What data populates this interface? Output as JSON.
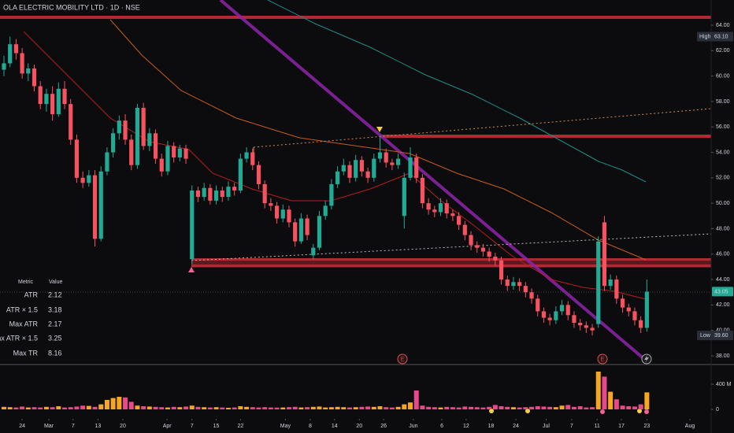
{
  "chart_data": {
    "type": "candlestick",
    "title": "OLA ELECTRIC MOBILITY LTD · 1D · NSE",
    "up_color": "#22ab94",
    "down_color": "#f7525f",
    "ohlc": [
      [
        60.5,
        61.6,
        60.0,
        61.0
      ],
      [
        61.0,
        63.1,
        60.7,
        62.5
      ],
      [
        62.5,
        62.9,
        61.3,
        61.8
      ],
      [
        61.8,
        62.2,
        59.8,
        60.2
      ],
      [
        60.2,
        61.0,
        59.6,
        60.6
      ],
      [
        60.6,
        60.9,
        58.8,
        59.2
      ],
      [
        59.2,
        59.6,
        57.4,
        57.8
      ],
      [
        57.8,
        59.0,
        57.2,
        58.6
      ],
      [
        58.6,
        59.2,
        56.5,
        57.0
      ],
      [
        57.0,
        59.5,
        56.8,
        59.0
      ],
      [
        59.0,
        59.6,
        57.4,
        57.8
      ],
      [
        57.8,
        58.2,
        54.6,
        55.0
      ],
      [
        55.0,
        55.4,
        51.6,
        52.0
      ],
      [
        52.0,
        52.5,
        51.2,
        51.6
      ],
      [
        51.6,
        52.6,
        51.3,
        52.2
      ],
      [
        52.2,
        52.6,
        46.6,
        47.2
      ],
      [
        47.2,
        52.9,
        47.0,
        52.5
      ],
      [
        52.5,
        54.4,
        52.2,
        54.0
      ],
      [
        54.0,
        55.9,
        53.6,
        55.5
      ],
      [
        55.5,
        56.9,
        55.0,
        56.5
      ],
      [
        56.5,
        57.0,
        54.6,
        55.0
      ],
      [
        55.0,
        55.4,
        52.6,
        53.0
      ],
      [
        53.0,
        57.8,
        52.7,
        57.5
      ],
      [
        57.5,
        57.9,
        54.2,
        54.5
      ],
      [
        54.5,
        55.9,
        54.1,
        55.5
      ],
      [
        55.5,
        55.8,
        53.1,
        53.5
      ],
      [
        53.5,
        53.9,
        52.1,
        52.5
      ],
      [
        52.5,
        54.9,
        52.2,
        54.5
      ],
      [
        54.5,
        54.8,
        53.2,
        53.6
      ],
      [
        53.6,
        54.6,
        53.3,
        54.3
      ],
      [
        54.3,
        54.6,
        53.1,
        53.5
      ],
      [
        45.6,
        51.4,
        45.2,
        51.0
      ],
      [
        51.0,
        51.3,
        50.1,
        50.5
      ],
      [
        50.5,
        51.6,
        50.2,
        51.2
      ],
      [
        51.2,
        51.5,
        49.9,
        50.2
      ],
      [
        50.2,
        51.4,
        49.9,
        51.0
      ],
      [
        51.0,
        51.3,
        50.1,
        50.5
      ],
      [
        50.5,
        51.7,
        50.2,
        51.3
      ],
      [
        51.3,
        51.6,
        50.6,
        51.0
      ],
      [
        51.0,
        53.9,
        50.8,
        53.5
      ],
      [
        53.5,
        54.4,
        53.2,
        54.0
      ],
      [
        54.0,
        54.3,
        52.6,
        53.0
      ],
      [
        53.0,
        53.3,
        51.1,
        51.5
      ],
      [
        51.5,
        51.8,
        49.6,
        50.0
      ],
      [
        50.0,
        50.4,
        49.4,
        49.8
      ],
      [
        49.8,
        50.1,
        48.4,
        48.8
      ],
      [
        48.8,
        49.9,
        48.5,
        49.5
      ],
      [
        49.5,
        49.8,
        48.1,
        48.5
      ],
      [
        48.5,
        48.8,
        46.6,
        47.0
      ],
      [
        47.0,
        49.2,
        46.8,
        48.8
      ],
      [
        48.8,
        49.1,
        47.1,
        47.5
      ],
      [
        45.9,
        46.8,
        45.6,
        46.5
      ],
      [
        46.5,
        49.4,
        46.3,
        49.0
      ],
      [
        49.0,
        50.2,
        48.7,
        49.8
      ],
      [
        49.8,
        51.9,
        49.5,
        51.5
      ],
      [
        51.5,
        52.9,
        51.2,
        52.5
      ],
      [
        52.5,
        53.5,
        52.2,
        53.0
      ],
      [
        53.0,
        53.3,
        51.6,
        52.0
      ],
      [
        52.0,
        53.8,
        51.7,
        53.4
      ],
      [
        53.4,
        53.7,
        52.1,
        52.5
      ],
      [
        52.5,
        52.8,
        51.6,
        52.0
      ],
      [
        52.0,
        53.9,
        51.7,
        53.5
      ],
      [
        53.5,
        55.3,
        53.2,
        54.0
      ],
      [
        54.0,
        54.3,
        52.8,
        53.2
      ],
      [
        53.2,
        53.5,
        52.6,
        53.0
      ],
      [
        53.0,
        53.9,
        52.7,
        53.5
      ],
      [
        49.0,
        52.4,
        48.0,
        52.0
      ],
      [
        52.0,
        54.4,
        51.8,
        53.6
      ],
      [
        53.6,
        53.9,
        51.6,
        52.0
      ],
      [
        52.0,
        52.3,
        49.6,
        50.0
      ],
      [
        50.0,
        50.4,
        49.1,
        49.5
      ],
      [
        49.5,
        49.8,
        48.9,
        49.3
      ],
      [
        49.3,
        50.4,
        49.0,
        50.0
      ],
      [
        50.0,
        50.3,
        48.8,
        49.2
      ],
      [
        49.2,
        49.5,
        48.6,
        49.0
      ],
      [
        49.0,
        49.3,
        47.9,
        48.3
      ],
      [
        48.3,
        48.6,
        47.1,
        47.5
      ],
      [
        47.5,
        47.8,
        46.3,
        46.7
      ],
      [
        46.7,
        47.0,
        46.1,
        46.5
      ],
      [
        46.5,
        46.8,
        45.8,
        46.2
      ],
      [
        46.2,
        46.5,
        45.4,
        45.8
      ],
      [
        45.8,
        46.1,
        45.1,
        45.5
      ],
      [
        45.5,
        45.8,
        43.6,
        44.0
      ],
      [
        44.0,
        44.3,
        43.1,
        43.5
      ],
      [
        43.5,
        44.2,
        43.2,
        43.8
      ],
      [
        43.8,
        44.1,
        43.1,
        43.5
      ],
      [
        43.5,
        43.8,
        42.6,
        43.0
      ],
      [
        43.0,
        43.3,
        42.1,
        42.5
      ],
      [
        42.5,
        42.8,
        41.1,
        41.5
      ],
      [
        41.5,
        41.8,
        40.6,
        41.0
      ],
      [
        41.0,
        41.3,
        40.4,
        40.8
      ],
      [
        40.8,
        41.9,
        40.5,
        41.5
      ],
      [
        41.5,
        42.4,
        41.2,
        42.0
      ],
      [
        42.0,
        42.3,
        40.8,
        41.2
      ],
      [
        41.2,
        41.5,
        40.2,
        40.6
      ],
      [
        40.6,
        40.9,
        40.0,
        40.4
      ],
      [
        40.4,
        40.7,
        39.8,
        40.2
      ],
      [
        40.2,
        40.5,
        39.6,
        40.0
      ],
      [
        40.5,
        47.4,
        40.2,
        47.0
      ],
      [
        48.5,
        49.0,
        43.1,
        43.5
      ],
      [
        43.5,
        44.4,
        43.2,
        44.0
      ],
      [
        44.0,
        44.3,
        42.1,
        42.5
      ],
      [
        42.5,
        42.8,
        41.4,
        41.8
      ],
      [
        41.8,
        42.1,
        41.1,
        41.5
      ],
      [
        41.5,
        41.8,
        40.4,
        40.8
      ],
      [
        40.8,
        41.1,
        39.8,
        40.2
      ],
      [
        40.2,
        44.0,
        39.9,
        43.05
      ]
    ],
    "xlim": [
      -0.65,
      116.6
    ],
    "xticks": [
      {
        "value": 3,
        "label": "24"
      },
      {
        "value": 7.4,
        "label": "Mar"
      },
      {
        "value": 11.4,
        "label": "7"
      },
      {
        "value": 15.5,
        "label": "13"
      },
      {
        "value": 19.6,
        "label": "20"
      },
      {
        "value": 26.9,
        "label": "Apr"
      },
      {
        "value": 31,
        "label": "7"
      },
      {
        "value": 35,
        "label": "15"
      },
      {
        "value": 39,
        "label": "22"
      },
      {
        "value": 46.4,
        "label": "May"
      },
      {
        "value": 50.5,
        "label": "8"
      },
      {
        "value": 54.5,
        "label": "14"
      },
      {
        "value": 58.6,
        "label": "20"
      },
      {
        "value": 62.6,
        "label": "26"
      },
      {
        "value": 67.5,
        "label": "Jun"
      },
      {
        "value": 72.2,
        "label": "6"
      },
      {
        "value": 76.2,
        "label": "12"
      },
      {
        "value": 80.3,
        "label": "18"
      },
      {
        "value": 84.4,
        "label": "24"
      },
      {
        "value": 89.4,
        "label": "Jul"
      },
      {
        "value": 93.6,
        "label": "7"
      },
      {
        "value": 97.8,
        "label": "11"
      },
      {
        "value": 101.8,
        "label": "17"
      },
      {
        "value": 106,
        "label": "23"
      },
      {
        "value": 113.1,
        "label": "Aug"
      }
    ],
    "ylim": [
      37.38,
      65.98
    ],
    "yticks": [
      {
        "value": 38,
        "label": "38.00"
      },
      {
        "value": 40,
        "label": "40.00"
      },
      {
        "value": 42,
        "label": "42.00"
      },
      {
        "value": 44,
        "label": "44.00"
      },
      {
        "value": 46,
        "label": "46.00"
      },
      {
        "value": 48,
        "label": "48.00"
      },
      {
        "value": 50,
        "label": "50.00"
      },
      {
        "value": 52,
        "label": "52.00"
      },
      {
        "value": 54,
        "label": "54.00"
      },
      {
        "value": 56,
        "label": "56.00"
      },
      {
        "value": 58,
        "label": "58.00"
      },
      {
        "value": 60,
        "label": "60.00"
      },
      {
        "value": 62,
        "label": "62.00"
      },
      {
        "value": 64,
        "label": "64.00"
      }
    ],
    "high": {
      "label": "High",
      "price": {
        "value": 63.1,
        "label": "63.10"
      }
    },
    "last": {
      "value": 43.05,
      "label": "43.05"
    },
    "low": {
      "label": "Low",
      "price": {
        "value": 39.6,
        "label": "39.60"
      }
    },
    "volume": {
      "up_color": "#f5a623",
      "down_color": "#e8498a",
      "values": [
        40,
        35,
        30,
        45,
        30,
        35,
        30,
        40,
        35,
        50,
        30,
        35,
        45,
        60,
        55,
        40,
        80,
        150,
        180,
        200,
        190,
        120,
        60,
        50,
        45,
        40,
        35,
        30,
        40,
        35,
        45,
        60,
        40,
        35,
        30,
        35,
        30,
        25,
        30,
        50,
        40,
        35,
        30,
        35,
        30,
        28,
        30,
        35,
        40,
        30,
        35,
        40,
        45,
        30,
        35,
        40,
        35,
        30,
        35,
        40,
        45,
        40,
        50,
        35,
        30,
        40,
        80,
        110,
        300,
        60,
        40,
        35,
        30,
        40,
        35,
        30,
        45,
        40,
        35,
        30,
        40,
        70,
        50,
        40,
        35,
        30,
        35,
        40,
        50,
        45,
        40,
        35,
        60,
        70,
        40,
        50,
        30,
        35,
        600,
        520,
        280,
        160,
        60,
        50,
        45,
        80,
        270
      ],
      "ylim": [
        -125,
        700
      ],
      "yticks": [
        0,
        {
          "value": 400,
          "label": "400 M"
        }
      ]
    }
  },
  "metrics": {
    "header": [
      "Metric",
      "Value"
    ],
    "rows": [
      [
        "ATR",
        "2.12"
      ],
      [
        "ATR × 1.5",
        "3.18"
      ],
      [
        "Max ATR",
        "2.17"
      ],
      [
        "Max ATR × 1.5",
        "3.25"
      ],
      [
        "Max TR",
        "8.16"
      ]
    ]
  },
  "event_markers": [
    "E",
    "E"
  ]
}
